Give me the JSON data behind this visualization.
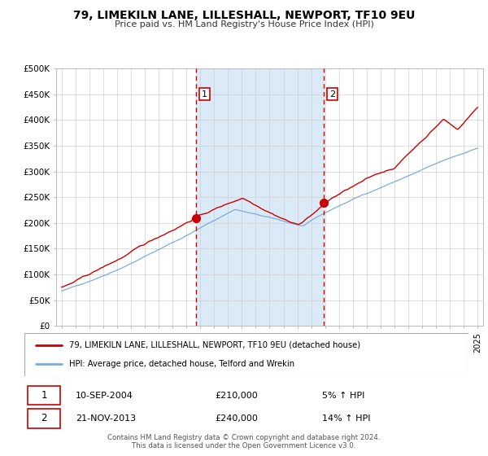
{
  "title": "79, LIMEKILN LANE, LILLESHALL, NEWPORT, TF10 9EU",
  "subtitle": "Price paid vs. HM Land Registry's House Price Index (HPI)",
  "legend_line1": "79, LIMEKILN LANE, LILLESHALL, NEWPORT, TF10 9EU (detached house)",
  "legend_line2": "HPI: Average price, detached house, Telford and Wrekin",
  "sale1_date": "10-SEP-2004",
  "sale1_price": "£210,000",
  "sale1_hpi": "5% ↑ HPI",
  "sale2_date": "21-NOV-2013",
  "sale2_price": "£240,000",
  "sale2_hpi": "14% ↑ HPI",
  "footer1": "Contains HM Land Registry data © Crown copyright and database right 2024.",
  "footer2": "This data is licensed under the Open Government Licence v3.0.",
  "ylim": [
    0,
    500000
  ],
  "yticks": [
    0,
    50000,
    100000,
    150000,
    200000,
    250000,
    300000,
    350000,
    400000,
    450000,
    500000
  ],
  "sale1_year": 2004.7,
  "sale2_year": 2013.9,
  "sale1_price_val": 210000,
  "sale2_price_val": 240000,
  "red_color": "#cc0000",
  "blue_color": "#7aaddc",
  "shade_color": "#dbeaf7",
  "grid_color": "#d0d0d0",
  "spine_color": "#bbbbbb"
}
